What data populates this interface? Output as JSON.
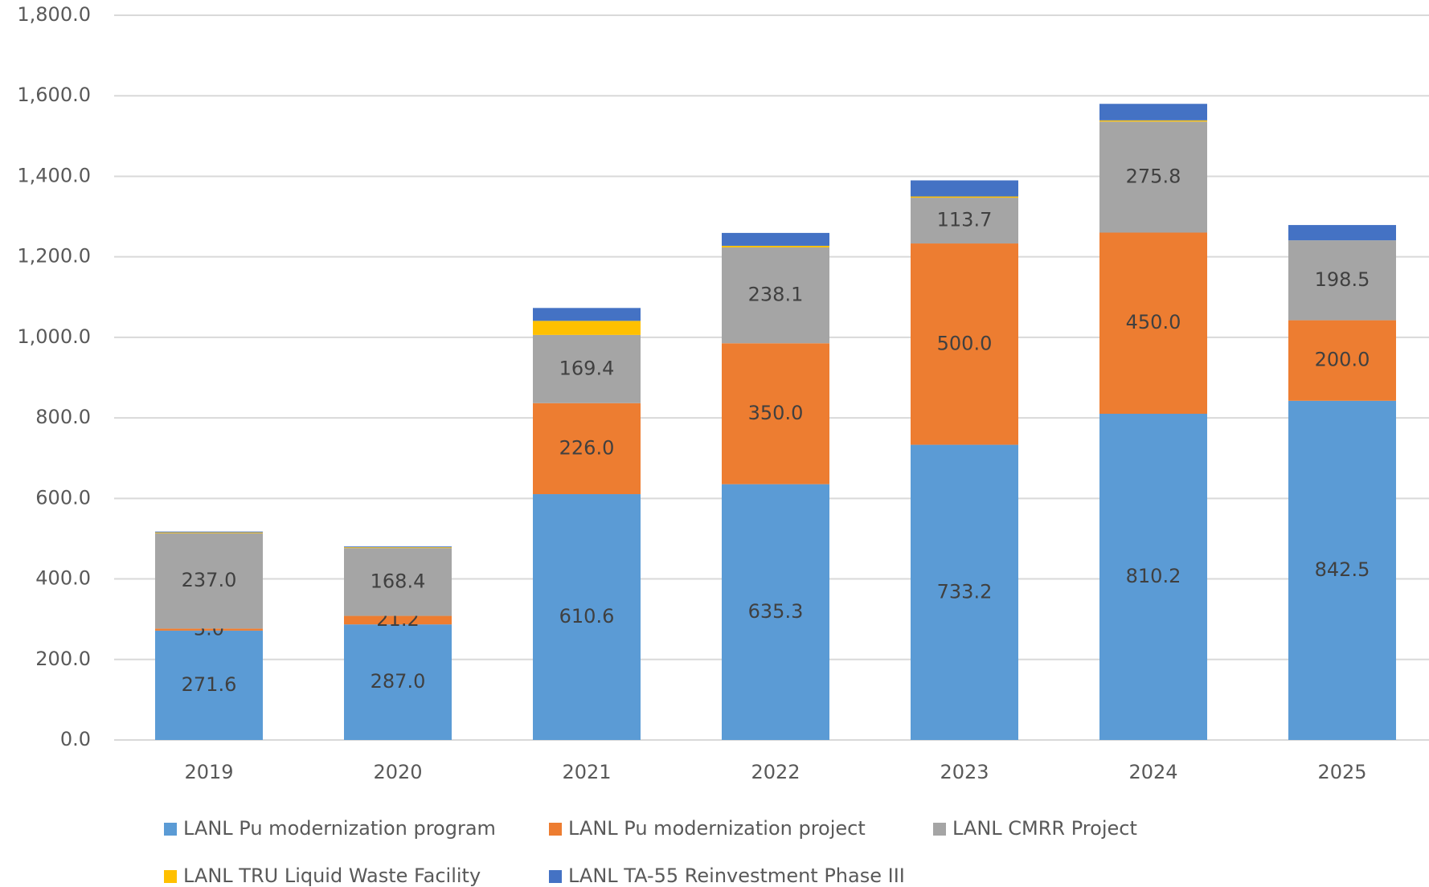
{
  "chart_data": {
    "type": "stacked_bar",
    "categories": [
      "2019",
      "2020",
      "2021",
      "2022",
      "2023",
      "2024",
      "2025"
    ],
    "series": [
      {
        "name": "LANL Pu modernization program",
        "color": "#5b9bd5",
        "values": [
          271.6,
          287.0,
          610.6,
          635.3,
          733.2,
          810.2,
          842.5
        ],
        "value_labels": [
          "271.6",
          "287.0",
          "610.6",
          "635.3",
          "733.2",
          "810.2",
          "842.5"
        ]
      },
      {
        "name": "LANL Pu modernization project",
        "color": "#ed7d31",
        "values": [
          5.0,
          21.2,
          226.0,
          350.0,
          500.0,
          450.0,
          200.0
        ],
        "value_labels": [
          "5.0",
          "21.2",
          "226.0",
          "350.0",
          "500.0",
          "450.0",
          "200.0"
        ]
      },
      {
        "name": "LANL CMRR Project",
        "color": "#a5a5a5",
        "values": [
          237.0,
          168.4,
          169.4,
          238.1,
          113.7,
          275.8,
          198.5
        ],
        "value_labels": [
          "237.0",
          "168.4",
          "169.4",
          "238.1",
          "113.7",
          "275.8",
          "198.5"
        ]
      },
      {
        "name": "LANL TRU Liquid Waste Facility",
        "color": "#ffc000",
        "values": [
          2,
          2,
          35,
          4,
          3,
          3,
          0
        ]
      },
      {
        "name": "LANL TA-55 Reinvestment Phase III",
        "color": "#4472c4",
        "values": [
          2,
          2,
          32,
          32,
          40,
          41,
          38
        ]
      }
    ],
    "ylim": [
      0,
      1800
    ],
    "yticks": [
      {
        "value": 0,
        "label": "0.0"
      },
      {
        "value": 200,
        "label": "200.0"
      },
      {
        "value": 400,
        "label": "400.0"
      },
      {
        "value": 600,
        "label": "600.0"
      },
      {
        "value": 800,
        "label": "800.0"
      },
      {
        "value": 1000,
        "label": "1,000.0"
      },
      {
        "value": 1200,
        "label": "1,200.0"
      },
      {
        "value": 1400,
        "label": "1,400.0"
      },
      {
        "value": 1600,
        "label": "1,600.0"
      },
      {
        "value": 1800,
        "label": "1,800.0"
      }
    ],
    "grid": true,
    "legend": "bottom"
  }
}
